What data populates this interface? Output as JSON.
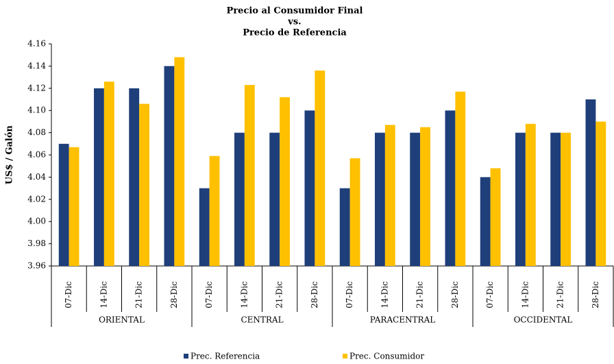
{
  "chart_data": {
    "type": "bar",
    "title": [
      "Precio al Consumidor Final",
      "vs.",
      "Precio de Referencia"
    ],
    "y_label": "US$ / Galón",
    "categories": [
      "07-Dic",
      "14-Dic",
      "21-Dic",
      "28-Dic",
      "07-Dic",
      "14-Dic",
      "21-Dic",
      "28-Dic",
      "07-Dic",
      "14-Dic",
      "21-Dic",
      "28-Dic",
      "07-Dic",
      "14-Dic",
      "21-Dic",
      "28-Dic"
    ],
    "groups": [
      "ORIENTAL",
      "CENTRAL",
      "PARACENTRAL",
      "OCCIDENTAL"
    ],
    "series": [
      {
        "name": "Prec. Referencia",
        "color": "#1f3f7a",
        "values": [
          4.07,
          4.12,
          4.12,
          4.14,
          4.03,
          4.08,
          4.08,
          4.1,
          4.03,
          4.08,
          4.08,
          4.1,
          4.04,
          4.08,
          4.08,
          4.11
        ]
      },
      {
        "name": "Prec. Consumidor",
        "color": "#ffc000",
        "values": [
          4.067,
          4.126,
          4.106,
          4.148,
          4.059,
          4.123,
          4.112,
          4.136,
          4.057,
          4.087,
          4.085,
          4.117,
          4.048,
          4.088,
          4.08,
          4.09
        ]
      }
    ],
    "ylim": [
      3.96,
      4.16
    ],
    "yticks": [
      3.96,
      3.98,
      {
        "value": 4,
        "label": "4.00"
      },
      4.02,
      4.04,
      4.06,
      4.08,
      {
        "value": 4.1,
        "label": "4.10"
      },
      4.12,
      4.14,
      4.16
    ],
    "legend": "bottom"
  }
}
